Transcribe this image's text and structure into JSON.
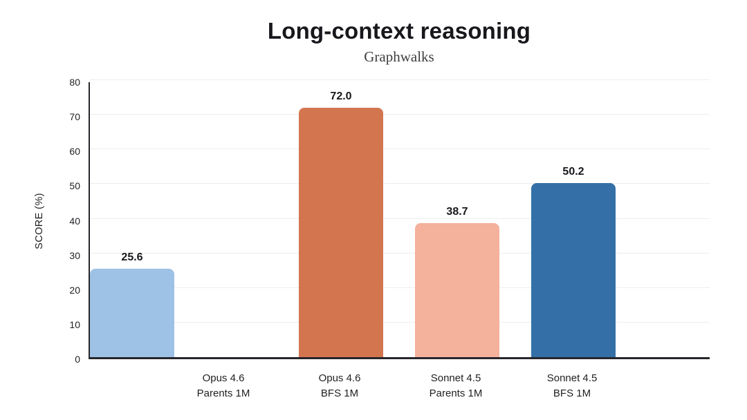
{
  "header": {
    "title": "Long-context reasoning",
    "subtitle": "Graphwalks"
  },
  "chart_data": {
    "type": "bar",
    "title": "Long-context reasoning",
    "subtitle": "Graphwalks",
    "xlabel": "",
    "ylabel": "SCORE (%)",
    "ylim": [
      0,
      80
    ],
    "yticks": [
      0,
      10,
      20,
      30,
      40,
      50,
      60,
      70,
      80
    ],
    "grid": true,
    "legend": false,
    "categories": [
      [
        "Opus 4.6",
        "Parents 1M"
      ],
      [
        "Opus 4.6",
        "BFS 1M"
      ],
      [
        "Sonnet 4.5",
        "Parents 1M"
      ],
      [
        "Sonnet 4.5",
        "BFS 1M"
      ]
    ],
    "values": [
      72.0,
      38.7,
      50.2,
      25.6
    ],
    "value_labels": [
      "72.0",
      "38.7",
      "50.2",
      "25.6"
    ],
    "colors": [
      "#D3764F",
      "#F4B19C",
      "#3470A7",
      "#9DC2E5"
    ],
    "axis_color": "#26262b",
    "grid_color": "#ededed"
  }
}
